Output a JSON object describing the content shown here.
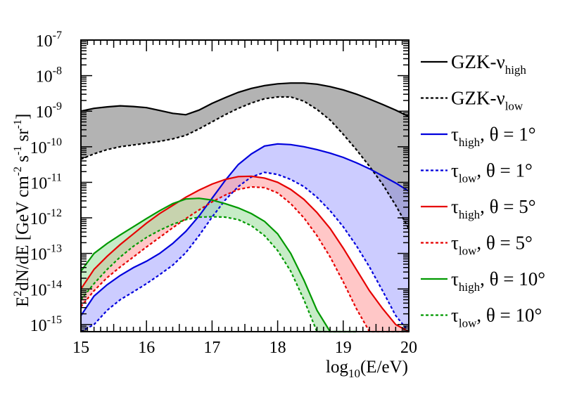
{
  "chart_data": {
    "type": "area",
    "xlabel": "log10(E/eV)",
    "ylabel": "E2dN/dE [GeV cm-2 s-1 sr-1]",
    "xlim": [
      15,
      20
    ],
    "ylim_log10": [
      -15.2,
      -7
    ],
    "x_ticks": [
      "15",
      "16",
      "17",
      "18",
      "19",
      "20"
    ],
    "y_ticks": [
      {
        "exp": -7,
        "label": "10-7"
      },
      {
        "exp": -8,
        "label": "10-8"
      },
      {
        "exp": -9,
        "label": "10-9"
      },
      {
        "exp": -10,
        "label": "10-10"
      },
      {
        "exp": -11,
        "label": "10-11"
      },
      {
        "exp": -12,
        "label": "10-12"
      },
      {
        "exp": -13,
        "label": "10-13"
      },
      {
        "exp": -14,
        "label": "10-14"
      },
      {
        "exp": -15,
        "label": "10-15"
      }
    ],
    "bands": [
      {
        "name": "GZK-ν",
        "color": "#000000",
        "fill": "#808080",
        "fill_opacity": 0.6,
        "x": [
          15,
          15.2,
          15.4,
          15.6,
          15.8,
          16,
          16.2,
          16.4,
          16.6,
          16.8,
          17,
          17.2,
          17.4,
          17.6,
          17.8,
          18,
          18.2,
          18.4,
          18.6,
          18.8,
          19,
          19.2,
          19.4,
          19.6,
          19.8,
          20
        ],
        "high": [
          -9.0,
          -8.92,
          -8.88,
          -8.85,
          -8.87,
          -8.9,
          -8.98,
          -9.06,
          -9.1,
          -8.97,
          -8.78,
          -8.62,
          -8.47,
          -8.36,
          -8.28,
          -8.23,
          -8.21,
          -8.21,
          -8.24,
          -8.31,
          -8.4,
          -8.52,
          -8.66,
          -8.81,
          -8.97,
          -9.15
        ],
        "low": [
          -10.35,
          -10.2,
          -10.08,
          -10.0,
          -9.95,
          -9.9,
          -9.85,
          -9.78,
          -9.68,
          -9.5,
          -9.3,
          -9.1,
          -8.92,
          -8.77,
          -8.65,
          -8.6,
          -8.6,
          -8.72,
          -8.95,
          -9.25,
          -9.65,
          -10.08,
          -10.55,
          -11.05,
          -11.65,
          -12.3
        ]
      },
      {
        "name": "τ, θ = 1°",
        "color": "#0000dd",
        "fill": "#9999ff",
        "fill_opacity": 0.5,
        "x": [
          15,
          15.2,
          15.4,
          15.6,
          15.8,
          16,
          16.2,
          16.4,
          16.6,
          16.8,
          17,
          17.2,
          17.4,
          17.6,
          17.8,
          18,
          18.2,
          18.4,
          18.6,
          18.8,
          19,
          19.2,
          19.4,
          19.6,
          19.8,
          20
        ],
        "high": [
          -14.75,
          -14.2,
          -13.88,
          -13.62,
          -13.4,
          -13.22,
          -13.0,
          -12.72,
          -12.38,
          -11.95,
          -11.45,
          -10.95,
          -10.5,
          -10.2,
          -9.98,
          -9.92,
          -9.94,
          -10.0,
          -10.08,
          -10.18,
          -10.3,
          -10.45,
          -10.62,
          -10.82,
          -11.02,
          -11.25
        ],
        "low": [
          -15.2,
          -15.0,
          -14.6,
          -14.3,
          -14.08,
          -13.85,
          -13.6,
          -13.33,
          -12.98,
          -12.5,
          -11.98,
          -11.5,
          -11.12,
          -10.85,
          -10.72,
          -10.78,
          -10.92,
          -11.12,
          -11.42,
          -11.8,
          -12.25,
          -12.78,
          -13.38,
          -14.05,
          -14.75,
          -15.2
        ]
      },
      {
        "name": "τ, θ = 5°",
        "color": "#e60000",
        "fill": "#ff9999",
        "fill_opacity": 0.55,
        "x": [
          15,
          15.2,
          15.4,
          15.6,
          15.8,
          16,
          16.2,
          16.4,
          16.6,
          16.8,
          17,
          17.2,
          17.4,
          17.6,
          17.8,
          18,
          18.2,
          18.4,
          18.6,
          18.8,
          19,
          19.2,
          19.4,
          19.6,
          19.8,
          20
        ],
        "high": [
          -14.0,
          -13.45,
          -13.08,
          -12.75,
          -12.45,
          -12.15,
          -11.88,
          -11.65,
          -11.42,
          -11.22,
          -11.05,
          -10.92,
          -10.84,
          -10.83,
          -10.88,
          -11.0,
          -11.2,
          -11.48,
          -11.85,
          -12.3,
          -12.85,
          -13.45,
          -14.05,
          -14.55,
          -15.0,
          -15.2
        ],
        "low": [
          -14.5,
          -14.05,
          -13.68,
          -13.38,
          -13.1,
          -12.82,
          -12.55,
          -12.28,
          -12.02,
          -11.78,
          -11.55,
          -11.36,
          -11.2,
          -11.13,
          -11.15,
          -11.3,
          -11.6,
          -12.0,
          -12.5,
          -13.1,
          -13.8,
          -14.55,
          -15.2,
          -15.2,
          -15.2,
          -15.2
        ]
      },
      {
        "name": "τ, θ = 10°",
        "color": "#009900",
        "fill": "#99dd99",
        "fill_opacity": 0.55,
        "x": [
          15,
          15.2,
          15.4,
          15.6,
          15.8,
          16,
          16.2,
          16.4,
          16.6,
          16.8,
          17,
          17.2,
          17.4,
          17.6,
          17.8,
          18,
          18.2,
          18.4,
          18.6,
          18.8,
          19,
          19.2
        ],
        "high": [
          -13.5,
          -13.0,
          -12.72,
          -12.48,
          -12.25,
          -12.02,
          -11.8,
          -11.6,
          -11.47,
          -11.45,
          -11.5,
          -11.6,
          -11.72,
          -11.88,
          -12.1,
          -12.45,
          -13.0,
          -13.75,
          -14.6,
          -15.2,
          -15.2,
          -15.2
        ],
        "low": [
          -14.3,
          -13.85,
          -13.45,
          -13.1,
          -12.8,
          -12.55,
          -12.35,
          -12.18,
          -12.05,
          -11.98,
          -11.97,
          -11.98,
          -12.05,
          -12.22,
          -12.5,
          -12.92,
          -13.5,
          -14.3,
          -15.2,
          -15.2,
          -15.2,
          -15.2
        ]
      }
    ]
  },
  "axis_text": {
    "x_title_main": "log",
    "x_title_sub": "10",
    "x_title_rest": "(E/eV)",
    "y_title_E": "E",
    "y_title_sup2": "2",
    "y_title_mid": "dN/dE [GeV cm",
    "y_title_sup_cm": "-2",
    "y_title_s": " s",
    "y_title_sup_s": "-1",
    "y_title_sr": " sr",
    "y_title_sup_sr": "-1",
    "y_title_end": "]"
  },
  "legend": [
    {
      "main": "GZK-ν",
      "sub": "high",
      "tail": "",
      "color": "#000000",
      "dashed": false
    },
    {
      "main": "GZK-ν",
      "sub": "low",
      "tail": "",
      "color": "#000000",
      "dashed": true
    },
    {
      "main": "τ",
      "sub": "high",
      "tail": ", θ = 1°",
      "color": "#0000dd",
      "dashed": false
    },
    {
      "main": "τ",
      "sub": "low",
      "tail": ", θ = 1°",
      "color": "#0000dd",
      "dashed": true
    },
    {
      "main": "τ",
      "sub": "high",
      "tail": ", θ = 5°",
      "color": "#e60000",
      "dashed": false
    },
    {
      "main": "τ",
      "sub": "low",
      "tail": ", θ = 5°",
      "color": "#e60000",
      "dashed": true
    },
    {
      "main": "τ",
      "sub": "high",
      "tail": ", θ = 10°",
      "color": "#009900",
      "dashed": false
    },
    {
      "main": "τ",
      "sub": "low",
      "tail": ", θ = 10°",
      "color": "#009900",
      "dashed": true
    }
  ]
}
